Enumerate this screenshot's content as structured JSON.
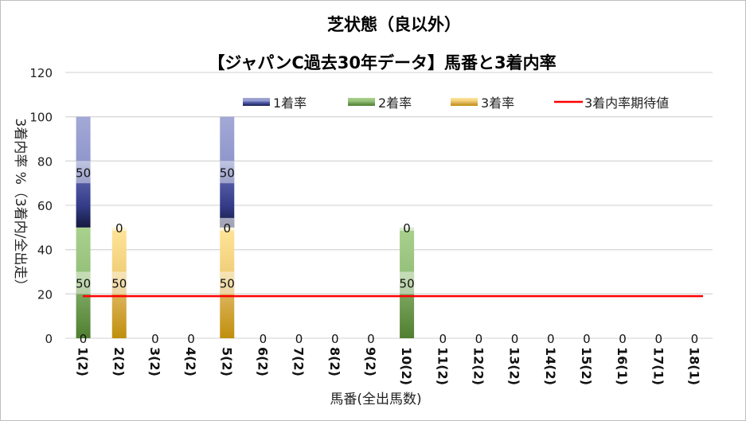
{
  "chart_data": {
    "type": "bar",
    "stacked": true,
    "title": "芝状態（良以外）",
    "subtitle": "【ジャパンC過去30年データ】馬番と3着内率",
    "xlabel": "馬番(全出馬数)",
    "ylabel": "3着内率 %（3着内/全出走）",
    "ylim": [
      0,
      120
    ],
    "yticks": [
      "0",
      "20",
      "40",
      "60",
      "80",
      "100",
      "120"
    ],
    "grid": true,
    "legend_position": "top-right",
    "categories": [
      "1(2)",
      "2(2)",
      "3(2)",
      "4(2)",
      "5(2)",
      "6(2)",
      "7(2)",
      "8(2)",
      "9(2)",
      "10(2)",
      "11(2)",
      "12(2)",
      "13(2)",
      "14(2)",
      "15(2)",
      "16(1)",
      "17(1)",
      "18(1)"
    ],
    "series": [
      {
        "name": "3着率",
        "color": "#c8960f",
        "values": [
          0,
          50,
          0,
          0,
          50,
          0,
          0,
          0,
          0,
          0,
          0,
          0,
          0,
          0,
          0,
          0,
          0,
          0
        ]
      },
      {
        "name": "2着率",
        "color": "#5a8a38",
        "values": [
          50,
          0,
          0,
          0,
          0,
          0,
          0,
          0,
          0,
          50,
          0,
          0,
          0,
          0,
          0,
          0,
          0,
          0
        ]
      },
      {
        "name": "1着率",
        "color": "#2a3278",
        "values": [
          50,
          0,
          0,
          0,
          50,
          0,
          0,
          0,
          0,
          0,
          0,
          0,
          0,
          0,
          0,
          0,
          0,
          0
        ]
      }
    ],
    "legend_order": [
      "1着率",
      "2着率",
      "3着率",
      "3着内率期待値"
    ],
    "expected_line": {
      "name": "3着内率期待値",
      "color": "#ff0000",
      "value": 19
    }
  }
}
